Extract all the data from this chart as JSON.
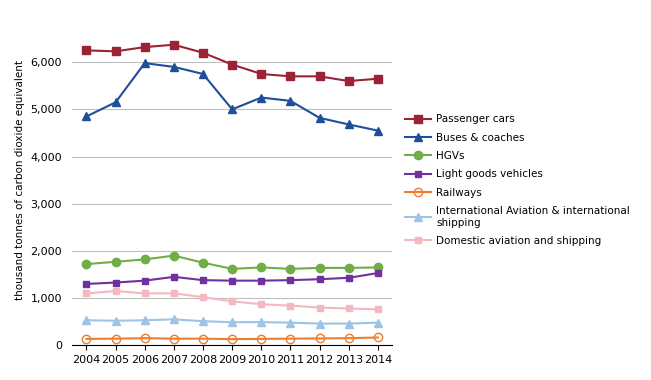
{
  "years": [
    2004,
    2005,
    2006,
    2007,
    2008,
    2009,
    2010,
    2011,
    2012,
    2013,
    2014
  ],
  "series": [
    {
      "label": "Passenger cars",
      "color": "#9b2335",
      "marker": "s",
      "markersize": 6,
      "linewidth": 1.5,
      "markerfacecolor": "fill",
      "values": [
        6250,
        6230,
        6320,
        6370,
        6200,
        5950,
        5750,
        5700,
        5700,
        5600,
        5650
      ]
    },
    {
      "label": "Buses & coaches",
      "color": "#1f4e9b",
      "marker": "^",
      "markersize": 6,
      "linewidth": 1.5,
      "markerfacecolor": "fill",
      "values": [
        4850,
        5150,
        5980,
        5900,
        5750,
        5000,
        5250,
        5180,
        4820,
        4680,
        4550
      ]
    },
    {
      "label": "HGVs",
      "color": "#70ad47",
      "marker": "o",
      "markersize": 6,
      "linewidth": 1.5,
      "markerfacecolor": "fill",
      "values": [
        1720,
        1770,
        1820,
        1900,
        1750,
        1620,
        1650,
        1620,
        1640,
        1640,
        1650
      ]
    },
    {
      "label": "Light goods vehicles",
      "color": "#7030a0",
      "marker": "s",
      "markersize": 5,
      "linewidth": 1.5,
      "markerfacecolor": "fill",
      "values": [
        1300,
        1330,
        1370,
        1450,
        1380,
        1370,
        1370,
        1380,
        1400,
        1430,
        1530
      ]
    },
    {
      "label": "Railways",
      "color": "#ed7d31",
      "marker": "o",
      "markersize": 6,
      "linewidth": 1.5,
      "markerfacecolor": "none",
      "values": [
        135,
        140,
        150,
        140,
        140,
        130,
        135,
        140,
        145,
        150,
        165
      ]
    },
    {
      "label": "International Aviation & international\nshipping",
      "label_display": "International Aviation & international\nshipping",
      "color": "#9dc3e6",
      "marker": "^",
      "markersize": 6,
      "linewidth": 1.5,
      "markerfacecolor": "fill",
      "values": [
        530,
        520,
        530,
        550,
        510,
        490,
        490,
        480,
        460,
        460,
        480
      ]
    },
    {
      "label": "Domestic aviation and shipping",
      "color": "#f4b8c1",
      "marker": "s",
      "markersize": 5,
      "linewidth": 1.5,
      "markerfacecolor": "fill",
      "values": [
        1100,
        1150,
        1100,
        1100,
        1020,
        930,
        870,
        840,
        800,
        780,
        760
      ]
    }
  ],
  "ylabel": "thousand tonnes of carbon dioxide equivalent",
  "ylim": [
    0,
    7000
  ],
  "yticks": [
    0,
    1000,
    2000,
    3000,
    4000,
    5000,
    6000
  ],
  "grid_color": "#c0c0c0",
  "background_color": "#ffffff"
}
